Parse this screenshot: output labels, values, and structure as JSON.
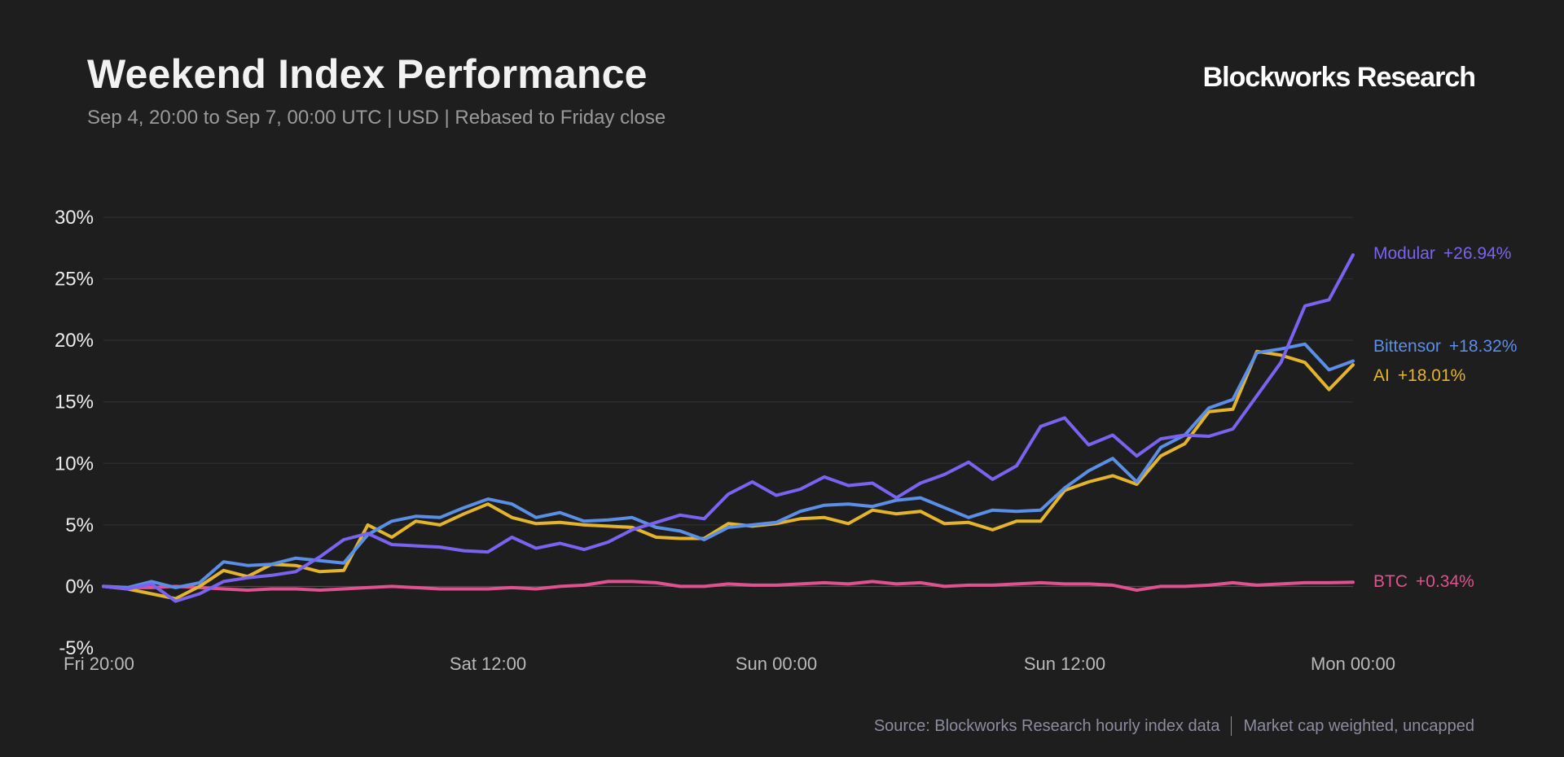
{
  "header": {
    "title": "Weekend Index Performance",
    "subtitle": "Sep 4, 20:00 to Sep 7, 00:00 UTC | USD | Rebased to Friday close",
    "brand": "Blockworks Research"
  },
  "footer": {
    "source": "Source: Blockworks Research hourly index data",
    "note": "Market cap weighted, uncapped"
  },
  "chart_data": {
    "type": "line",
    "x_unit": "hour",
    "x_range": [
      0,
      52
    ],
    "ylim": [
      -5,
      30
    ],
    "yticks": [
      -5,
      0,
      5,
      10,
      15,
      20,
      25,
      30
    ],
    "ytick_labels": [
      "-5%",
      "0%",
      "5%",
      "10%",
      "15%",
      "20%",
      "25%",
      "30%"
    ],
    "xticks": [
      0,
      16,
      28,
      40,
      52
    ],
    "xtick_labels": [
      "Fri 20:00",
      "Sat 12:00",
      "Sun 00:00",
      "Sun 12:00",
      "Mon 00:00"
    ],
    "grid": true,
    "series": [
      {
        "name": "Modular",
        "end_label": "+26.94%",
        "color": "#7b63f2",
        "values": [
          0,
          -0.2,
          0.2,
          -1.2,
          -0.6,
          0.4,
          0.7,
          0.9,
          1.2,
          2.4,
          3.8,
          4.3,
          3.4,
          3.3,
          3.2,
          2.9,
          2.8,
          4.0,
          3.1,
          3.5,
          3.0,
          3.6,
          4.6,
          5.2,
          5.8,
          5.5,
          7.5,
          8.5,
          7.4,
          7.9,
          8.9,
          8.2,
          8.4,
          7.2,
          8.4,
          9.1,
          10.1,
          8.7,
          9.8,
          13.0,
          13.7,
          11.5,
          12.3,
          10.6,
          12.0,
          12.3,
          12.2,
          12.8,
          15.5,
          18.2,
          22.8,
          23.3,
          26.94
        ]
      },
      {
        "name": "Bittensor",
        "end_label": "+18.32%",
        "color": "#5b8ee6",
        "values": [
          0,
          -0.1,
          0.4,
          -0.1,
          0.3,
          2.0,
          1.7,
          1.8,
          2.3,
          2.1,
          1.9,
          4.2,
          5.3,
          5.7,
          5.6,
          6.4,
          7.1,
          6.7,
          5.6,
          6.0,
          5.3,
          5.4,
          5.6,
          4.8,
          4.5,
          3.8,
          4.8,
          5.0,
          5.2,
          6.1,
          6.6,
          6.7,
          6.5,
          7.0,
          7.2,
          6.4,
          5.6,
          6.2,
          6.1,
          6.2,
          8.0,
          9.4,
          10.4,
          8.5,
          11.3,
          12.3,
          14.5,
          15.2,
          19.0,
          19.3,
          19.7,
          17.6,
          18.32
        ]
      },
      {
        "name": "AI",
        "end_label": "+18.01%",
        "color": "#e3b42c",
        "values": [
          0,
          -0.2,
          -0.6,
          -1.0,
          0.0,
          1.3,
          0.8,
          1.8,
          1.7,
          1.2,
          1.3,
          5.0,
          4.0,
          5.3,
          5.0,
          5.9,
          6.7,
          5.6,
          5.1,
          5.2,
          5.0,
          4.9,
          4.8,
          4.0,
          3.9,
          3.9,
          5.1,
          4.9,
          5.1,
          5.5,
          5.6,
          5.1,
          6.2,
          5.9,
          6.1,
          5.1,
          5.2,
          4.6,
          5.3,
          5.3,
          7.8,
          8.5,
          9.0,
          8.3,
          10.6,
          11.6,
          14.2,
          14.4,
          19.1,
          18.8,
          18.2,
          16.0,
          18.01
        ]
      },
      {
        "name": "BTC",
        "end_label": "+0.34%",
        "color": "#e0518f",
        "values": [
          0,
          -0.1,
          -0.1,
          0.0,
          -0.1,
          -0.2,
          -0.3,
          -0.2,
          -0.2,
          -0.3,
          -0.2,
          -0.1,
          0.0,
          -0.1,
          -0.2,
          -0.2,
          -0.2,
          -0.1,
          -0.2,
          0.0,
          0.1,
          0.4,
          0.4,
          0.3,
          0.0,
          0.0,
          0.2,
          0.1,
          0.1,
          0.2,
          0.3,
          0.2,
          0.4,
          0.2,
          0.3,
          0.0,
          0.1,
          0.1,
          0.2,
          0.3,
          0.2,
          0.2,
          0.1,
          -0.3,
          0.0,
          0.0,
          0.1,
          0.3,
          0.1,
          0.2,
          0.3,
          0.3,
          0.34
        ]
      }
    ]
  }
}
